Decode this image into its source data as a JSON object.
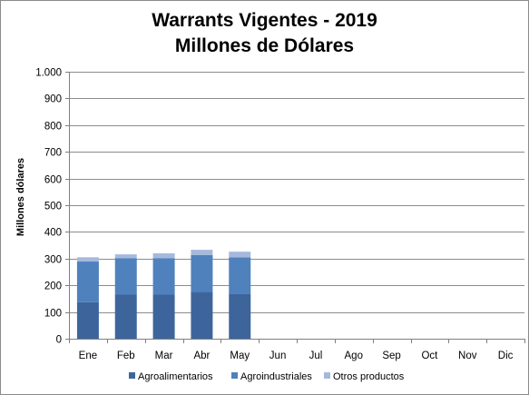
{
  "chart_data": {
    "type": "bar",
    "stacked": true,
    "title_line1": "Warrants Vigentes - 2019",
    "title_line2": "Millones de Dólares",
    "ylabel": "Millones dólares",
    "xlabel": "",
    "ylim": [
      0,
      1000
    ],
    "ytick_values": [
      0,
      100,
      200,
      300,
      400,
      500,
      600,
      700,
      800,
      900,
      1000
    ],
    "ytick_labels": [
      "0",
      "100",
      "200",
      "300",
      "400",
      "500",
      "600",
      "700",
      "800",
      "900",
      "1.000"
    ],
    "categories": [
      "Ene",
      "Feb",
      "Mar",
      "Abr",
      "May",
      "Jun",
      "Jul",
      "Ago",
      "Sep",
      "Oct",
      "Nov",
      "Dic"
    ],
    "series": [
      {
        "name": "Agroalimentarios",
        "color": "#3d659c",
        "values": [
          137,
          165,
          165,
          175,
          168,
          null,
          null,
          null,
          null,
          null,
          null,
          null
        ]
      },
      {
        "name": "Agroindustriales",
        "color": "#4f81bd",
        "values": [
          152,
          137,
          137,
          138,
          137,
          null,
          null,
          null,
          null,
          null,
          null,
          null
        ]
      },
      {
        "name": "Otros productos",
        "color": "#a6b9dc",
        "values": [
          16,
          14,
          18,
          20,
          21,
          null,
          null,
          null,
          null,
          null,
          null,
          null
        ]
      }
    ],
    "grid": true,
    "legend_position": "bottom"
  }
}
